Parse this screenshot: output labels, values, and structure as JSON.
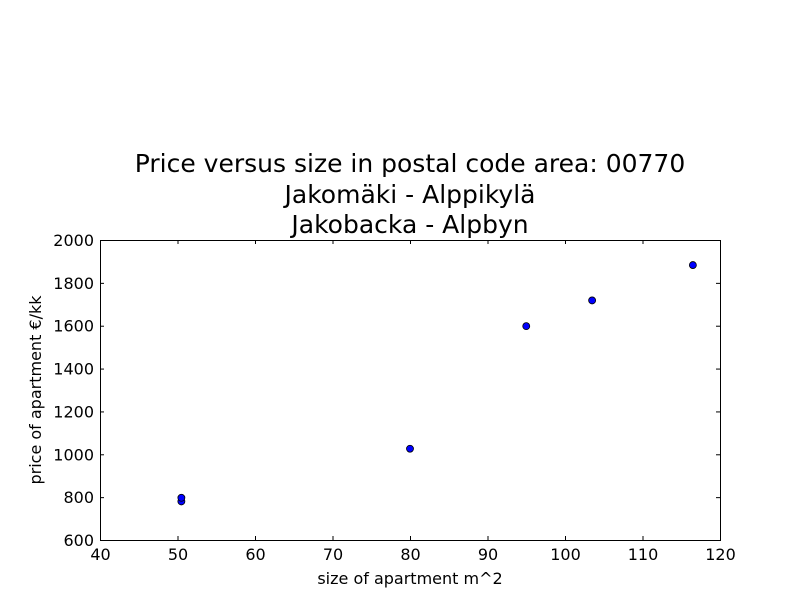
{
  "chart_data": {
    "type": "scatter",
    "title_lines": [
      "Price versus size in postal code area: 00770",
      "Jakomäki - Alppikylä",
      "Jakobacka - Alpbyn"
    ],
    "xlabel": "size of apartment m^2",
    "ylabel": "price of apartment €/kk",
    "xlim": [
      40,
      120
    ],
    "ylim": [
      600,
      2000
    ],
    "xticks": [
      "40",
      "50",
      "60",
      "70",
      "80",
      "90",
      "100",
      "110",
      "120"
    ],
    "yticks": [
      "600",
      "800",
      "1000",
      "1200",
      "1400",
      "1600",
      "1800",
      "2000"
    ],
    "grid": false,
    "marker_color": "#0000ff",
    "points": [
      {
        "x": 50.5,
        "y": 780
      },
      {
        "x": 50.5,
        "y": 797
      },
      {
        "x": 80.0,
        "y": 1026
      },
      {
        "x": 95.0,
        "y": 1598
      },
      {
        "x": 103.5,
        "y": 1718
      },
      {
        "x": 116.5,
        "y": 1883
      }
    ]
  }
}
